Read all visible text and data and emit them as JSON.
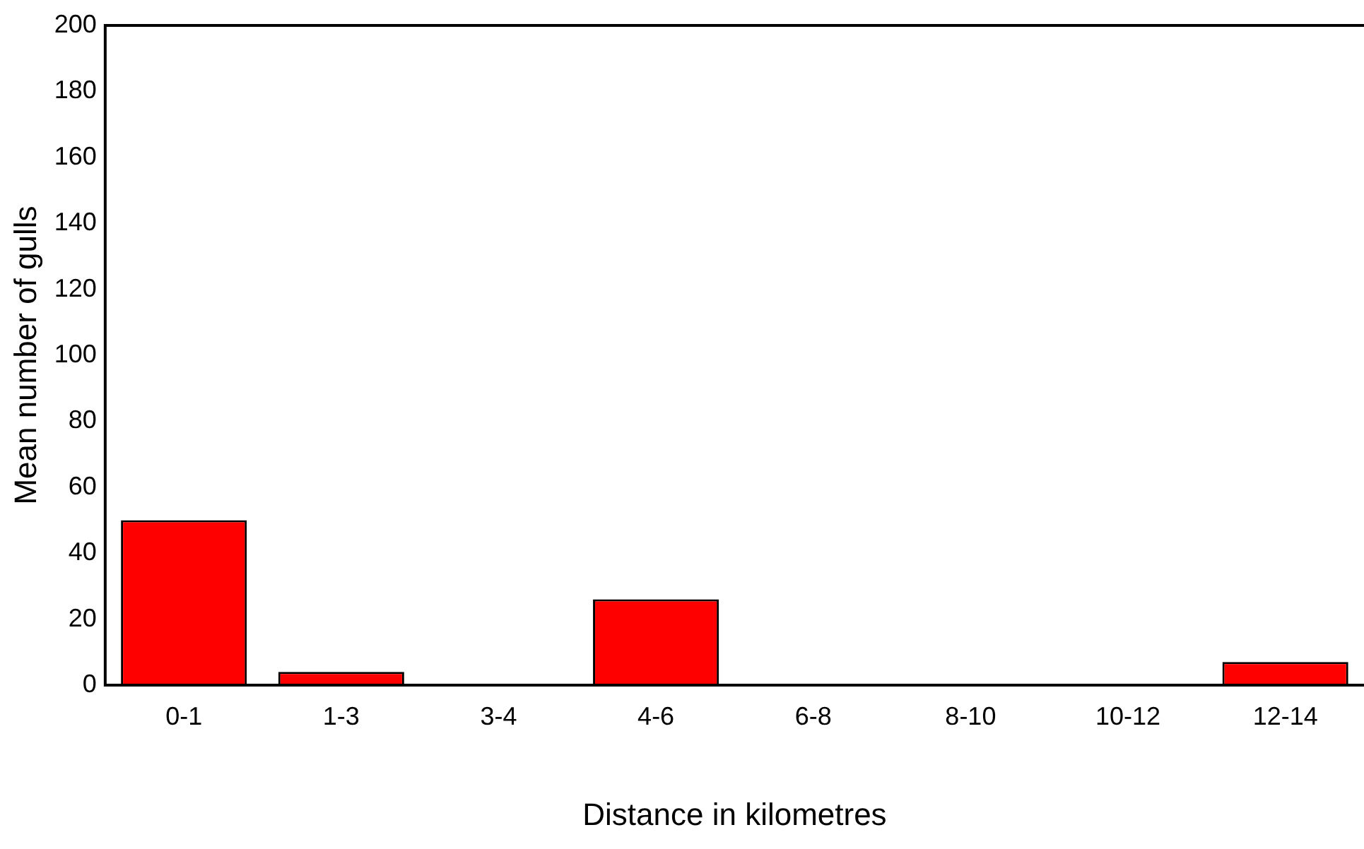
{
  "chart_data": {
    "type": "bar",
    "xlabel": "Distance in kilometres",
    "ylabel": "Mean number of gulls",
    "categories": [
      "0-1",
      "1-3",
      "3-4",
      "4-6",
      "6-8",
      "8-10",
      "10-12",
      "12-14"
    ],
    "values": [
      50,
      4,
      0,
      26,
      0,
      0,
      0,
      7
    ],
    "color": "#ff0000",
    "ylim": [
      0,
      200
    ],
    "yticks": [
      0,
      20,
      40,
      60,
      80,
      100,
      120,
      140,
      160,
      180,
      200
    ],
    "grid": false,
    "legend": false
  }
}
